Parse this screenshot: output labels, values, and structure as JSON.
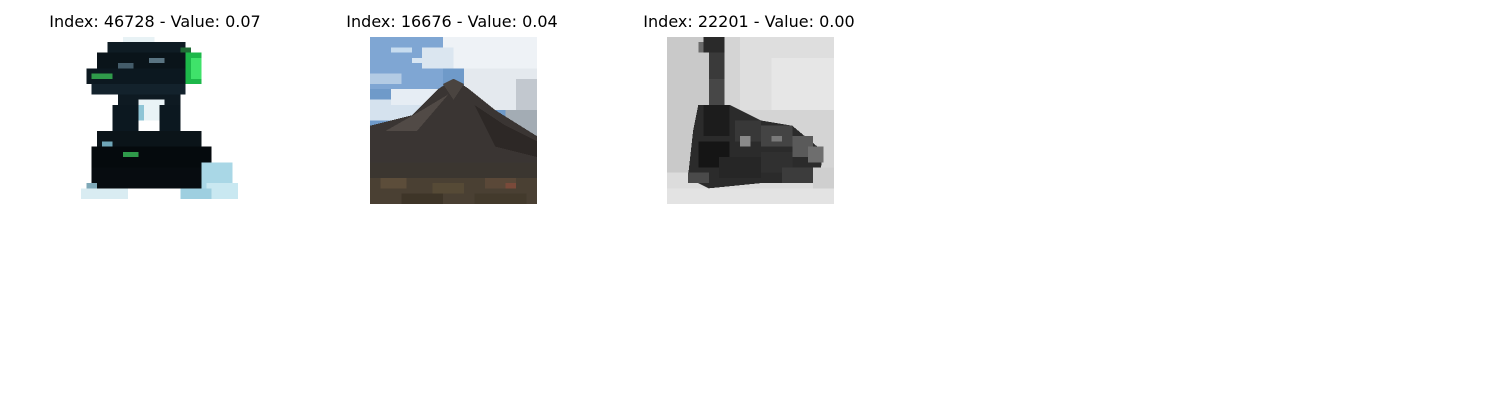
{
  "panels": [
    {
      "title": "Index: 46728 - Value: 0.07",
      "image_description": "pixelated black and green handheld device on a white background"
    },
    {
      "title": "Index: 16676 - Value: 0.04",
      "image_description": "pixelated photo of a dark mountain under a blue and white cloudy sky"
    },
    {
      "title": "Index: 22201 - Value: 0.00",
      "image_description": "pixelated grayscale photo of a steam train with a smoke plume"
    }
  ]
}
